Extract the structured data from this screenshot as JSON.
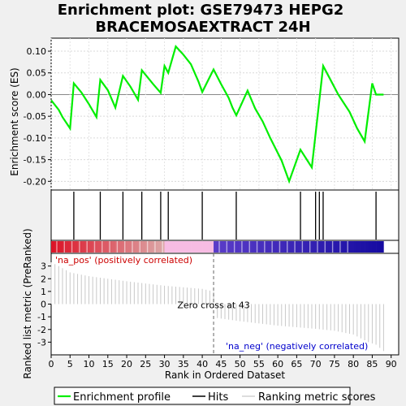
{
  "title_line1": "Enrichment plot: GSE79473 HEPG2",
  "title_line2": "BRACEMOSAEXTRACT 24H",
  "colors": {
    "es_line": "#00ee00",
    "hit_line": "#000000",
    "pos_text": "#cc0000",
    "neg_text": "#0000cc",
    "metric_fill": "#c8c8c8"
  },
  "chart_data": [
    {
      "type": "line",
      "name": "enrichment",
      "ylabel": "Enrichment score (ES)",
      "ylim": [
        -0.22,
        0.13
      ],
      "xlim": [
        0,
        92
      ],
      "yticks": [
        -0.2,
        -0.15,
        -0.1,
        -0.05,
        0.0,
        0.05,
        0.1
      ],
      "ytick_labels": [
        "-0.20",
        "-0.15",
        "-0.10",
        "-0.05",
        "0.00",
        "0.05",
        "0.10"
      ],
      "grid": true,
      "series": [
        {
          "name": "Enrichment profile",
          "x": [
            0,
            2,
            3,
            5,
            6,
            8,
            10,
            12,
            13,
            15,
            17,
            19,
            21,
            23,
            24,
            27,
            29,
            30,
            31,
            33,
            35,
            37,
            39,
            40,
            43,
            45,
            47,
            48,
            49,
            52,
            54,
            56,
            58,
            61,
            63,
            66,
            69,
            70,
            72,
            74,
            76,
            79,
            81,
            83,
            85,
            86,
            88
          ],
          "y": [
            -0.013,
            -0.035,
            -0.052,
            -0.078,
            0.026,
            0.005,
            -0.022,
            -0.052,
            0.034,
            0.01,
            -0.03,
            0.043,
            0.018,
            -0.012,
            0.056,
            0.024,
            0.004,
            0.066,
            0.05,
            0.111,
            0.092,
            0.07,
            0.03,
            0.006,
            0.058,
            0.024,
            -0.008,
            -0.03,
            -0.048,
            0.009,
            -0.032,
            -0.062,
            -0.1,
            -0.152,
            -0.2,
            -0.127,
            -0.168,
            -0.09,
            0.066,
            0.033,
            0.0,
            -0.04,
            -0.078,
            -0.108,
            0.026,
            0.0,
            0.0
          ]
        }
      ]
    },
    {
      "type": "bar",
      "name": "hits",
      "xlim": [
        0,
        92
      ],
      "hit_positions": [
        6,
        13,
        19,
        24,
        29,
        31,
        40,
        49,
        66,
        70,
        71,
        72,
        86
      ]
    },
    {
      "type": "area",
      "name": "ranked-metric",
      "ylabel": "Ranked list metric (PreRanked)",
      "xlabel": "Rank in Ordered Dataset",
      "ylim": [
        -4,
        4
      ],
      "xlim": [
        0,
        92
      ],
      "yticks": [
        -3,
        -2,
        -1,
        0,
        1,
        2,
        3
      ],
      "ytick_labels": [
        "-3",
        "-2",
        "-1",
        "0",
        "1",
        "2",
        "3"
      ],
      "xticks": [
        0,
        5,
        10,
        15,
        20,
        25,
        30,
        35,
        40,
        45,
        50,
        55,
        60,
        65,
        70,
        75,
        80,
        85,
        90
      ],
      "xtick_labels": [
        "0",
        "5",
        "10",
        "15",
        "20",
        "25",
        "30",
        "35",
        "40",
        "45",
        "50",
        "55",
        "60",
        "65",
        "70",
        "75",
        "80",
        "85",
        "90"
      ],
      "x": [
        0,
        2,
        5,
        10,
        20,
        30,
        40,
        43,
        44,
        50,
        60,
        70,
        75,
        80,
        84,
        86,
        88
      ],
      "values": [
        3.3,
        3.0,
        2.5,
        2.2,
        1.8,
        1.45,
        1.2,
        1.0,
        -1.1,
        -1.35,
        -1.7,
        -1.95,
        -2.1,
        -2.4,
        -3.0,
        -3.2,
        -3.7
      ],
      "zero_cross_rank": 43,
      "zero_cross_label": "Zero cross at 43",
      "pos_label": "'na_pos' (positively correlated)",
      "neg_label": "'na_neg' (negatively correlated)"
    }
  ],
  "legend": {
    "placement": "bottom",
    "items": [
      "Enrichment profile",
      "Hits",
      "Ranking metric scores"
    ]
  }
}
